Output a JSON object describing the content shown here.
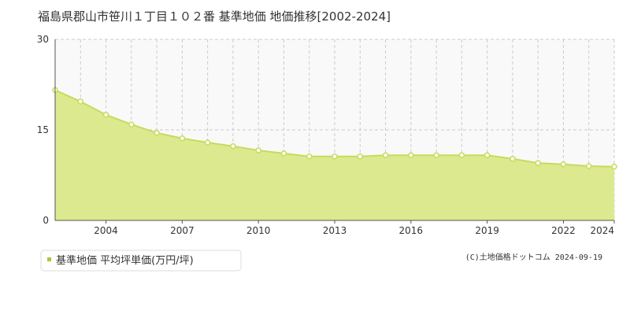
{
  "chart_data": {
    "type": "area",
    "title": "福島県郡山市笹川１丁目１０２番 基準地価 地価推移[2002-2024]",
    "x": [
      2002,
      2003,
      2004,
      2005,
      2006,
      2007,
      2008,
      2009,
      2010,
      2011,
      2012,
      2013,
      2014,
      2015,
      2016,
      2017,
      2018,
      2019,
      2020,
      2021,
      2022,
      2023,
      2024
    ],
    "series": [
      {
        "name": "基準地価 平均坪単価(万円/坪)",
        "color": "#c5dc5a",
        "values": [
          21.6,
          19.7,
          17.5,
          15.9,
          14.5,
          13.6,
          12.9,
          12.3,
          11.6,
          11.1,
          10.6,
          10.6,
          10.6,
          10.8,
          10.8,
          10.8,
          10.8,
          10.8,
          10.2,
          9.5,
          9.3,
          9.0,
          8.9
        ]
      }
    ],
    "xlim": [
      2002,
      2024
    ],
    "xticks": [
      2004,
      2007,
      2010,
      2013,
      2016,
      2019,
      2022,
      2024
    ],
    "ylim": [
      0,
      30
    ],
    "yticks": [
      0,
      15,
      30
    ],
    "grid": true,
    "source": "(C)土地価格ドットコム 2024-09-19"
  }
}
